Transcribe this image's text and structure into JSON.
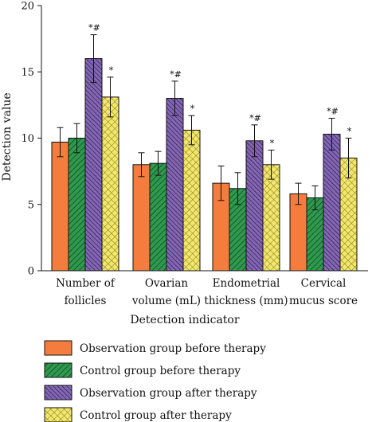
{
  "chart_data": {
    "type": "bar",
    "title": "",
    "xlabel": "Detection indicator",
    "ylabel": "Detection value",
    "ylim": [
      0,
      20
    ],
    "yticks": [
      0,
      5,
      10,
      15,
      20
    ],
    "grid": false,
    "legend_position": "bottom",
    "categories": [
      [
        "Number of",
        "follicles"
      ],
      [
        "Ovarian",
        "volume (mL)"
      ],
      [
        "Endometrial",
        "thickness (mm)"
      ],
      [
        "Cervical",
        "mucus score"
      ]
    ],
    "series": [
      {
        "name": "Observation group before therapy",
        "color": "#F47D3E",
        "pattern": "solid",
        "values": [
          9.7,
          8.0,
          6.6,
          5.8
        ],
        "errors": [
          1.1,
          0.9,
          1.3,
          0.8
        ],
        "annotations": [
          "",
          "",
          "",
          ""
        ]
      },
      {
        "name": "Control group before therapy",
        "color": "#2E9A4E",
        "pattern": "diagonal",
        "values": [
          10.0,
          8.1,
          6.2,
          5.5
        ],
        "errors": [
          1.1,
          0.9,
          1.2,
          0.9
        ],
        "annotations": [
          "",
          "",
          "",
          ""
        ]
      },
      {
        "name": "Observation group after therapy",
        "color": "#8366B5",
        "pattern": "dense-diagonal",
        "values": [
          16.0,
          13.0,
          9.8,
          10.3
        ],
        "errors": [
          1.8,
          1.3,
          1.2,
          1.2
        ],
        "annotations": [
          "*#",
          "*#",
          "*#",
          "*#"
        ]
      },
      {
        "name": "Control group after therapy",
        "color": "#F3E76A",
        "pattern": "crosshatch",
        "values": [
          13.1,
          10.6,
          8.0,
          8.5
        ],
        "errors": [
          1.5,
          1.1,
          1.1,
          1.5
        ],
        "annotations": [
          "*",
          "*",
          "*",
          "*"
        ]
      }
    ]
  }
}
